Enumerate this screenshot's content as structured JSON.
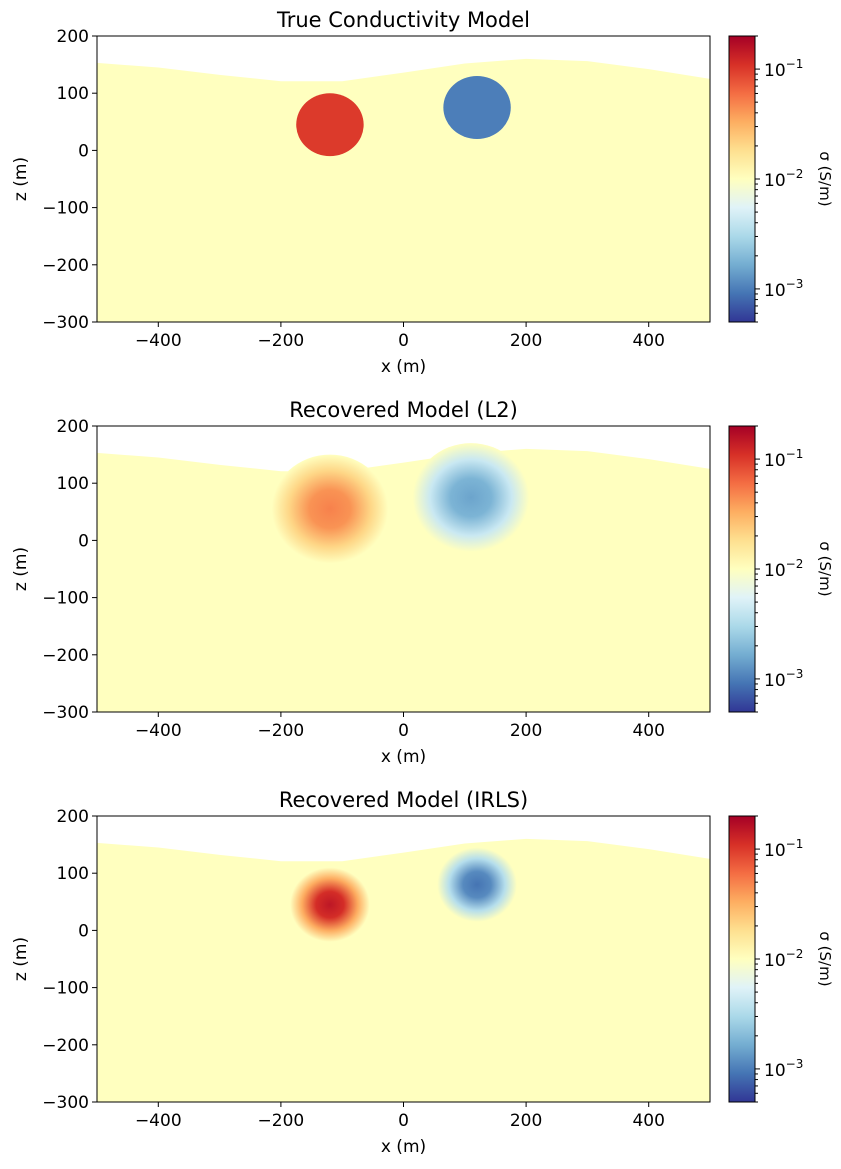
{
  "chart_data": [
    {
      "type": "heatmap",
      "title": "True Conductivity Model",
      "xlabel": "x (m)",
      "ylabel": "z (m)",
      "xlim": [
        -500,
        500
      ],
      "ylim": [
        -300,
        200
      ],
      "xticks": [
        -400,
        -200,
        0,
        200,
        400
      ],
      "yticks": [
        200,
        100,
        0,
        -100,
        -200,
        -300
      ],
      "colorbar": {
        "label": "σ (S/m)",
        "scale": "log",
        "range": [
          0.0005,
          0.2
        ],
        "ticks": [
          0.1,
          0.01,
          0.001
        ]
      },
      "background_sigma": 0.01,
      "topography": [
        [
          -500,
          153
        ],
        [
          -400,
          145
        ],
        [
          -300,
          132
        ],
        [
          -200,
          121
        ],
        [
          -100,
          121
        ],
        [
          0,
          136
        ],
        [
          100,
          152
        ],
        [
          200,
          160
        ],
        [
          300,
          156
        ],
        [
          400,
          142
        ],
        [
          500,
          125
        ]
      ],
      "anomalies": [
        {
          "kind": "conductor",
          "center": [
            -120,
            45
          ],
          "radius": 55,
          "sigma": 0.1,
          "sharp": true
        },
        {
          "kind": "resistor",
          "center": [
            120,
            75
          ],
          "radius": 55,
          "sigma": 0.001,
          "sharp": true
        }
      ]
    },
    {
      "type": "heatmap",
      "title": "Recovered Model (L2)",
      "xlabel": "x (m)",
      "ylabel": "z (m)",
      "xlim": [
        -500,
        500
      ],
      "ylim": [
        -300,
        200
      ],
      "xticks": [
        -400,
        -200,
        0,
        200,
        400
      ],
      "yticks": [
        200,
        100,
        0,
        -100,
        -200,
        -300
      ],
      "colorbar": {
        "label": "σ (S/m)",
        "scale": "log",
        "range": [
          0.0005,
          0.2
        ],
        "ticks": [
          0.1,
          0.01,
          0.001
        ]
      },
      "background_sigma": 0.01,
      "topography": [
        [
          -500,
          153
        ],
        [
          -400,
          145
        ],
        [
          -300,
          132
        ],
        [
          -200,
          121
        ],
        [
          -100,
          121
        ],
        [
          0,
          136
        ],
        [
          100,
          152
        ],
        [
          200,
          160
        ],
        [
          300,
          156
        ],
        [
          400,
          142
        ],
        [
          500,
          125
        ]
      ],
      "anomalies": [
        {
          "kind": "conductor",
          "center": [
            -120,
            55
          ],
          "radius": 95,
          "sigma": 0.05,
          "sharp": false
        },
        {
          "kind": "resistor",
          "center": [
            110,
            75
          ],
          "radius": 95,
          "sigma": 0.0015,
          "sharp": false
        }
      ]
    },
    {
      "type": "heatmap",
      "title": "Recovered Model (IRLS)",
      "xlabel": "x (m)",
      "ylabel": "z (m)",
      "xlim": [
        -500,
        500
      ],
      "ylim": [
        -300,
        200
      ],
      "xticks": [
        -400,
        -200,
        0,
        200,
        400
      ],
      "yticks": [
        200,
        100,
        0,
        -100,
        -200,
        -300
      ],
      "colorbar": {
        "label": "σ (S/m)",
        "scale": "log",
        "range": [
          0.0005,
          0.2
        ],
        "ticks": [
          0.1,
          0.01,
          0.001
        ]
      },
      "background_sigma": 0.01,
      "topography": [
        [
          -500,
          153
        ],
        [
          -400,
          145
        ],
        [
          -300,
          132
        ],
        [
          -200,
          121
        ],
        [
          -100,
          121
        ],
        [
          0,
          136
        ],
        [
          100,
          152
        ],
        [
          200,
          160
        ],
        [
          300,
          156
        ],
        [
          400,
          142
        ],
        [
          500,
          125
        ]
      ],
      "anomalies": [
        {
          "kind": "conductor",
          "center": [
            -120,
            45
          ],
          "radius": 65,
          "sigma": 0.15,
          "sharp": false
        },
        {
          "kind": "resistor",
          "center": [
            120,
            80
          ],
          "radius": 65,
          "sigma": 0.0009,
          "sharp": false
        }
      ]
    }
  ],
  "colormap": [
    "#313695",
    "#4575b4",
    "#74add1",
    "#abd9e9",
    "#e0f3f8",
    "#ffffbf",
    "#fee090",
    "#fdae61",
    "#f46d43",
    "#d73027",
    "#a50026"
  ]
}
